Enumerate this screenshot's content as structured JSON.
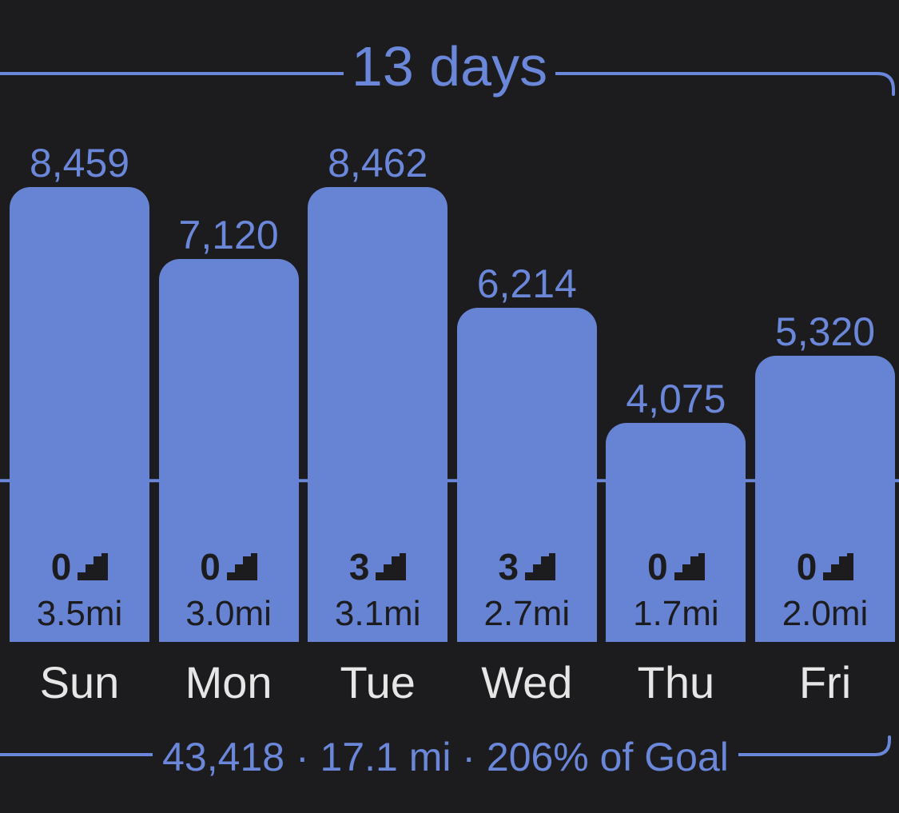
{
  "period_label": "13 days",
  "summary": "43,418 · 17.1 mi · 206% of Goal",
  "colors": {
    "background": "#1c1c1e",
    "bar": "#6783d3",
    "accent": "#6a87d9",
    "day_label": "#e6e6e6",
    "in_bar_text": "#1c1c1e"
  },
  "flights_icon": "stairs-icon",
  "chart_data": {
    "type": "bar",
    "categories": [
      "Sun",
      "Mon",
      "Tue",
      "Wed",
      "Thu",
      "Fri"
    ],
    "values": [
      8459,
      7120,
      8462,
      6214,
      4075,
      5320
    ],
    "value_labels": [
      "8,459",
      "7,120",
      "8,462",
      "6,214",
      "4,075",
      "5,320"
    ],
    "flights": [
      "0",
      "0",
      "3",
      "3",
      "0",
      "0"
    ],
    "distances": [
      "3.5mi",
      "3.0mi",
      "3.1mi",
      "2.7mi",
      "1.7mi",
      "2.0mi"
    ],
    "goal": 3000,
    "ylim": [
      0,
      8462
    ],
    "grid": false
  }
}
